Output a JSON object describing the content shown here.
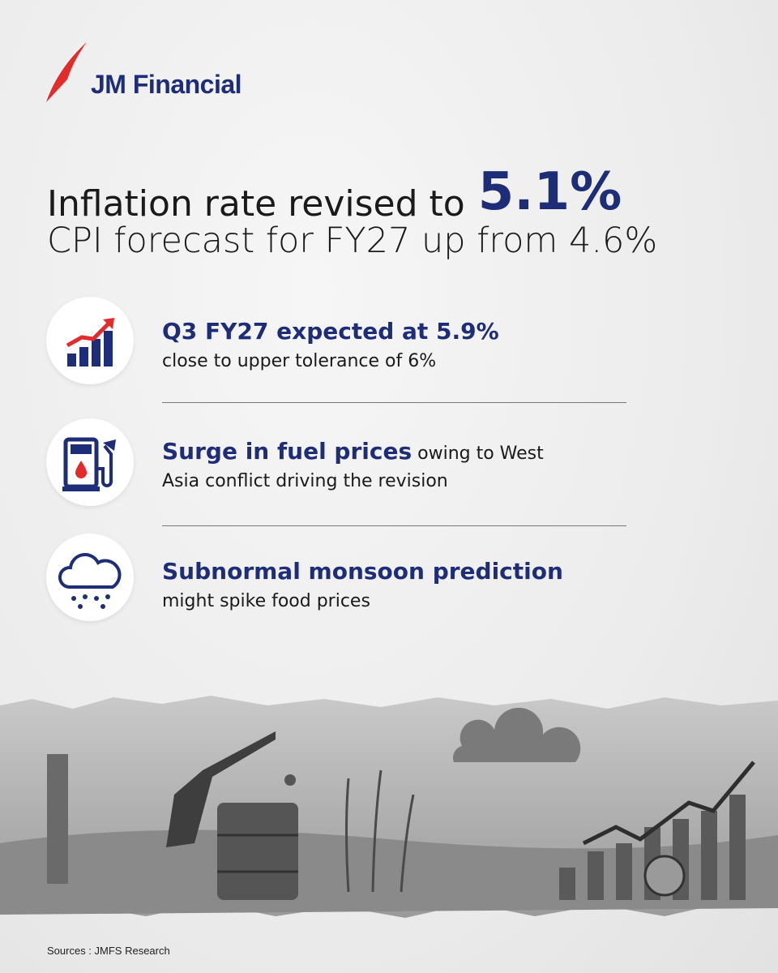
{
  "logo": {
    "text": "JM Financial"
  },
  "headline": {
    "lead": "Inflation rate revised to",
    "highlight": "5.1%",
    "subline": "CPI forecast for FY27 up from 4.6%"
  },
  "items": [
    {
      "title": "Q3 FY27 expected at 5.9%",
      "text": "close to upper tolerance of 6%"
    },
    {
      "title": "Surge in fuel prices",
      "text": "owing to West Asia conflict driving the revision"
    },
    {
      "title": "Subnormal monsoon prediction",
      "text": "might spike food prices"
    }
  ],
  "footer": {
    "sources": "Sources : JMFS Research"
  }
}
